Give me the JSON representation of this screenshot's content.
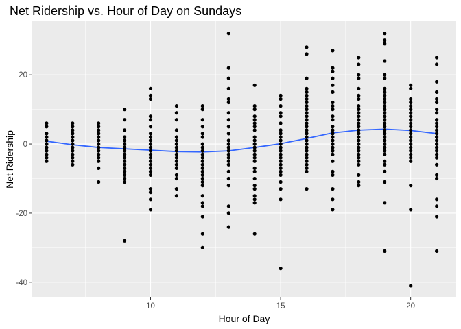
{
  "chart_data": {
    "type": "scatter",
    "title": "Net Ridership vs. Hour of Day on Sundays",
    "xlabel": "Hour of Day",
    "ylabel": "Net Ridership",
    "xlim": [
      5.45,
      21.75
    ],
    "ylim": [
      -44.4,
      35.5
    ],
    "x_ticks": [
      10,
      15,
      20
    ],
    "y_ticks": [
      -40,
      -20,
      0,
      20
    ],
    "grid": true,
    "colors": {
      "panel": "#ebebeb",
      "grid": "#ffffff",
      "points": "#000000",
      "smooth": "#3366ff"
    },
    "points": [
      {
        "x": 6,
        "y": [
          6,
          5,
          3,
          2,
          1,
          0,
          -1,
          -2,
          -3,
          -4,
          -5
        ]
      },
      {
        "x": 7,
        "y": [
          6,
          5,
          4,
          3,
          2,
          1,
          0,
          -1,
          -2,
          -3,
          -4,
          -5,
          -6
        ]
      },
      {
        "x": 8,
        "y": [
          6,
          5,
          4,
          3,
          2,
          1,
          0,
          -1,
          -2,
          -3,
          -4,
          -5,
          -7,
          -11
        ]
      },
      {
        "x": 9,
        "y": [
          10,
          7,
          4,
          2,
          1,
          0,
          -1,
          -2,
          -3,
          -4,
          -5,
          -6,
          -7,
          -8,
          -9,
          -10,
          -11,
          -28
        ]
      },
      {
        "x": 10,
        "y": [
          16,
          14,
          13,
          8,
          7,
          5,
          3,
          2,
          1,
          0,
          -1,
          -2,
          -3,
          -4,
          -5,
          -6,
          -7,
          -8,
          -9,
          -13,
          -14,
          -16,
          -19
        ]
      },
      {
        "x": 11,
        "y": [
          11,
          9,
          7,
          4,
          2,
          1,
          0,
          -1,
          -2,
          -3,
          -4,
          -5,
          -6,
          -7,
          -9,
          -10,
          -13,
          -15
        ]
      },
      {
        "x": 12,
        "y": [
          11,
          10,
          7,
          5,
          3,
          2,
          0,
          -1,
          -2,
          -3,
          -4,
          -5,
          -6,
          -7,
          -8,
          -9,
          -10,
          -11,
          -12,
          -15,
          -17,
          -18,
          -21,
          -26,
          -30
        ]
      },
      {
        "x": 13,
        "y": [
          32,
          22,
          19,
          16,
          13,
          12,
          9,
          7,
          5,
          3,
          1,
          0,
          -1,
          -2,
          -3,
          -4,
          -5,
          -6,
          -8,
          -10,
          -12,
          -18,
          -20,
          -24
        ]
      },
      {
        "x": 14,
        "y": [
          17,
          11,
          10,
          8,
          7,
          6,
          5,
          4,
          2,
          1,
          0,
          -1,
          -2,
          -3,
          -4,
          -5,
          -7,
          -8,
          -10,
          -12,
          -13,
          -15,
          -16,
          -17,
          -26
        ]
      },
      {
        "x": 15,
        "y": [
          14,
          13,
          11,
          9,
          8,
          6,
          4,
          3,
          2,
          1,
          0,
          -1,
          -2,
          -3,
          -4,
          -5,
          -6,
          -7,
          -8,
          -9,
          -11,
          -13,
          -16,
          -36
        ]
      },
      {
        "x": 16,
        "y": [
          28,
          26,
          19,
          16,
          15,
          14,
          13,
          12,
          11,
          10,
          9,
          8,
          7,
          6,
          5,
          4,
          3,
          2,
          1,
          0,
          -1,
          -2,
          -3,
          -4,
          -5,
          -6,
          -7,
          -8,
          -13
        ]
      },
      {
        "x": 17,
        "y": [
          27,
          22,
          21,
          19,
          17,
          15,
          12,
          11,
          10,
          8,
          7,
          5,
          4,
          3,
          2,
          1,
          0,
          -1,
          -2,
          -3,
          -5,
          -8,
          -9,
          -13,
          -16,
          -19
        ]
      },
      {
        "x": 18,
        "y": [
          25,
          23,
          20,
          19,
          16,
          14,
          13,
          11,
          10,
          9,
          8,
          7,
          6,
          5,
          4,
          3,
          2,
          1,
          0,
          -1,
          -2,
          -3,
          -4,
          -5,
          -6,
          -9,
          -11,
          -12
        ]
      },
      {
        "x": 19,
        "y": [
          32,
          30,
          29,
          24,
          20,
          19,
          16,
          15,
          14,
          13,
          12,
          11,
          10,
          9,
          8,
          7,
          6,
          5,
          4,
          3,
          2,
          1,
          0,
          -1,
          -2,
          -3,
          -5,
          -6,
          -8,
          -11,
          -17,
          -31
        ]
      },
      {
        "x": 20,
        "y": [
          17,
          16,
          13,
          12,
          11,
          10,
          9,
          8,
          7,
          6,
          5,
          4,
          3,
          2,
          1,
          0,
          -1,
          -2,
          -3,
          -4,
          -5,
          -12,
          -19,
          -41
        ]
      },
      {
        "x": 21,
        "y": [
          25,
          23,
          18,
          15,
          13,
          12,
          10,
          9,
          7,
          6,
          5,
          4,
          3,
          2,
          1,
          0,
          -1,
          -2,
          -3,
          -4,
          -6,
          -9,
          -10,
          -16,
          -18,
          -21,
          -31
        ]
      }
    ],
    "smooth": {
      "x": [
        6,
        7,
        8,
        9,
        10,
        11,
        12,
        13,
        14,
        15,
        16,
        17,
        18,
        19,
        20,
        21
      ],
      "y": [
        0.8,
        -0.2,
        -1.0,
        -1.4,
        -1.8,
        -2.2,
        -2.3,
        -2.0,
        -1.0,
        0.1,
        1.6,
        3.2,
        4.0,
        4.3,
        3.9,
        3.0
      ]
    }
  }
}
